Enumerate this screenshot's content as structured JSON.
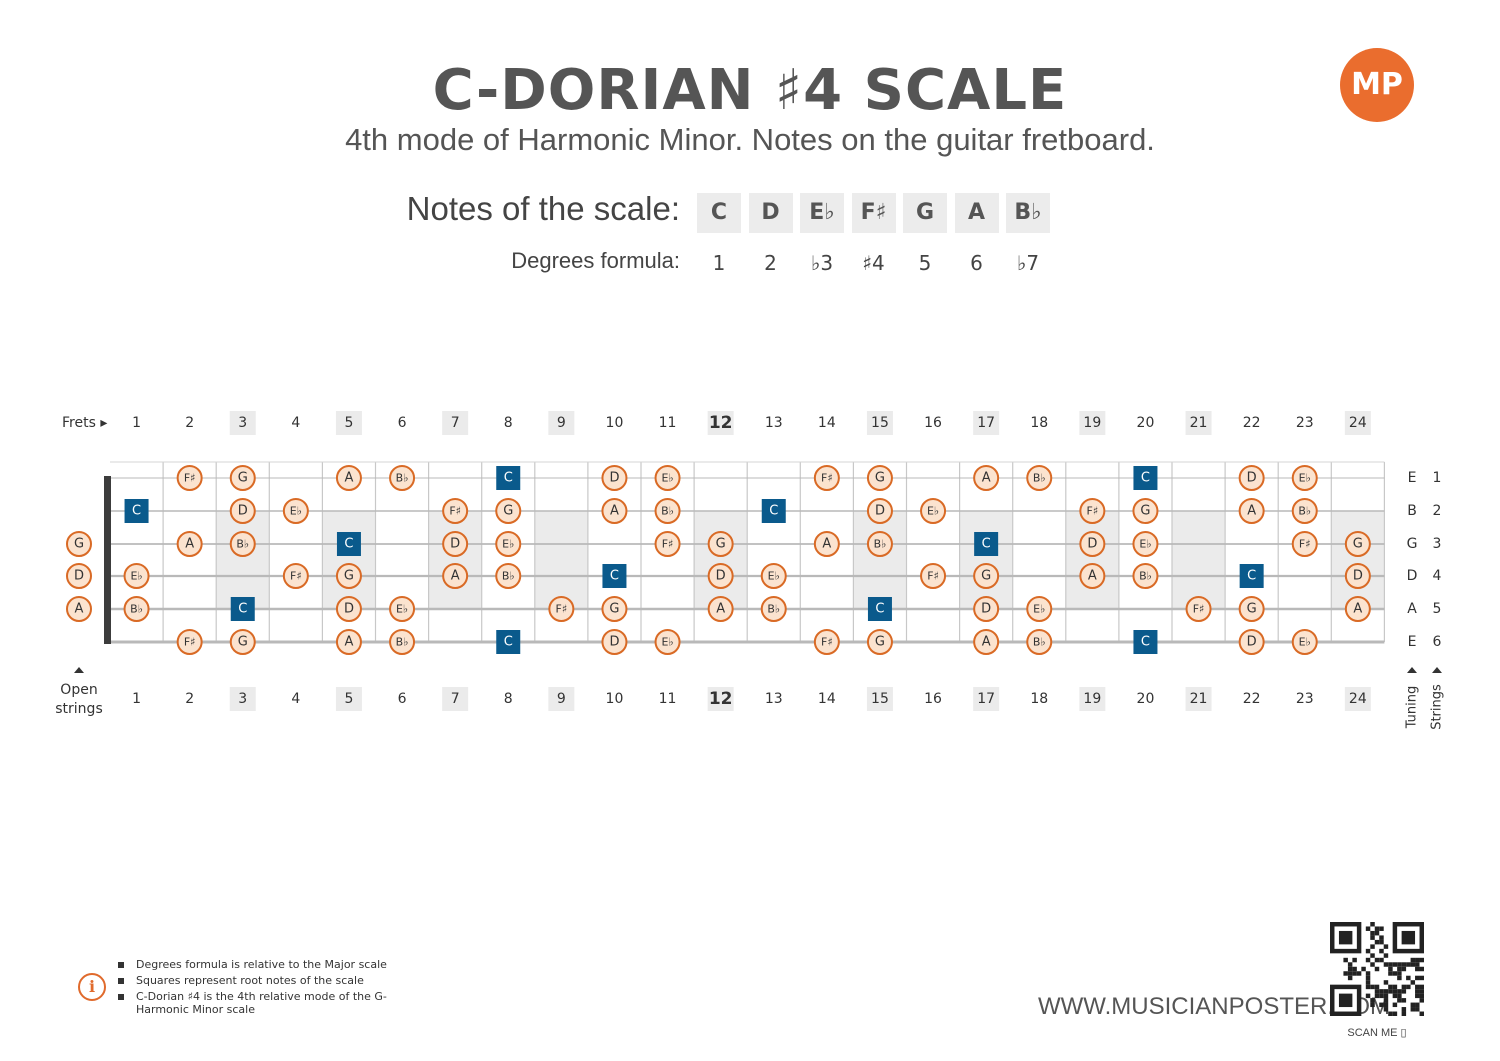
{
  "header": {
    "title": "C-DORIAN ♯4 SCALE",
    "subtitle": "4th mode of Harmonic Minor. Notes on the guitar fretboard.",
    "logo": "MP"
  },
  "scale": {
    "notes_label": "Notes of the scale:",
    "degrees_label": "Degrees formula:",
    "notes": [
      "C",
      "D",
      "E♭",
      "F♯",
      "G",
      "A",
      "B♭"
    ],
    "degrees": [
      "1",
      "2",
      "♭3",
      "♯4",
      "5",
      "6",
      "♭7"
    ]
  },
  "fretboard": {
    "frets_label": "Frets ▸",
    "open_label_1": "Open",
    "open_label_2": "strings",
    "tuning_label": "Tuning",
    "strings_label": "Strings",
    "fret_numbers": [
      "1",
      "2",
      "3",
      "4",
      "5",
      "6",
      "7",
      "8",
      "9",
      "10",
      "11",
      "12",
      "13",
      "14",
      "15",
      "16",
      "17",
      "18",
      "19",
      "20",
      "21",
      "22",
      "23",
      "24"
    ],
    "marked_frets": [
      3,
      5,
      7,
      9,
      12,
      15,
      17,
      19,
      21,
      24
    ],
    "bold_fret": 12,
    "strings": [
      {
        "tuning": "E",
        "number": "1",
        "open": null,
        "notes": [
          [
            2,
            "F♯"
          ],
          [
            3,
            "G"
          ],
          [
            5,
            "A"
          ],
          [
            6,
            "B♭"
          ],
          [
            8,
            "C"
          ],
          [
            10,
            "D"
          ],
          [
            11,
            "E♭"
          ],
          [
            14,
            "F♯"
          ],
          [
            15,
            "G"
          ],
          [
            17,
            "A"
          ],
          [
            18,
            "B♭"
          ],
          [
            20,
            "C"
          ],
          [
            22,
            "D"
          ],
          [
            23,
            "E♭"
          ]
        ]
      },
      {
        "tuning": "B",
        "number": "2",
        "open": null,
        "notes": [
          [
            1,
            "C"
          ],
          [
            3,
            "D"
          ],
          [
            4,
            "E♭"
          ],
          [
            7,
            "F♯"
          ],
          [
            8,
            "G"
          ],
          [
            10,
            "A"
          ],
          [
            11,
            "B♭"
          ],
          [
            13,
            "C"
          ],
          [
            15,
            "D"
          ],
          [
            16,
            "E♭"
          ],
          [
            19,
            "F♯"
          ],
          [
            20,
            "G"
          ],
          [
            22,
            "A"
          ],
          [
            23,
            "B♭"
          ]
        ]
      },
      {
        "tuning": "G",
        "number": "3",
        "open": "G",
        "notes": [
          [
            2,
            "A"
          ],
          [
            3,
            "B♭"
          ],
          [
            5,
            "C"
          ],
          [
            7,
            "D"
          ],
          [
            8,
            "E♭"
          ],
          [
            11,
            "F♯"
          ],
          [
            12,
            "G"
          ],
          [
            14,
            "A"
          ],
          [
            15,
            "B♭"
          ],
          [
            17,
            "C"
          ],
          [
            19,
            "D"
          ],
          [
            20,
            "E♭"
          ],
          [
            23,
            "F♯"
          ],
          [
            24,
            "G"
          ]
        ]
      },
      {
        "tuning": "D",
        "number": "4",
        "open": "D",
        "notes": [
          [
            1,
            "E♭"
          ],
          [
            4,
            "F♯"
          ],
          [
            5,
            "G"
          ],
          [
            7,
            "A"
          ],
          [
            8,
            "B♭"
          ],
          [
            10,
            "C"
          ],
          [
            12,
            "D"
          ],
          [
            13,
            "E♭"
          ],
          [
            16,
            "F♯"
          ],
          [
            17,
            "G"
          ],
          [
            19,
            "A"
          ],
          [
            20,
            "B♭"
          ],
          [
            22,
            "C"
          ],
          [
            24,
            "D"
          ]
        ]
      },
      {
        "tuning": "A",
        "number": "5",
        "open": "A",
        "notes": [
          [
            1,
            "B♭"
          ],
          [
            3,
            "C"
          ],
          [
            5,
            "D"
          ],
          [
            6,
            "E♭"
          ],
          [
            9,
            "F♯"
          ],
          [
            10,
            "G"
          ],
          [
            12,
            "A"
          ],
          [
            13,
            "B♭"
          ],
          [
            15,
            "C"
          ],
          [
            17,
            "D"
          ],
          [
            18,
            "E♭"
          ],
          [
            21,
            "F♯"
          ],
          [
            22,
            "G"
          ],
          [
            24,
            "A"
          ]
        ]
      },
      {
        "tuning": "E",
        "number": "6",
        "open": null,
        "notes": [
          [
            2,
            "F♯"
          ],
          [
            3,
            "G"
          ],
          [
            5,
            "A"
          ],
          [
            6,
            "B♭"
          ],
          [
            8,
            "C"
          ],
          [
            10,
            "D"
          ],
          [
            11,
            "E♭"
          ],
          [
            14,
            "F♯"
          ],
          [
            15,
            "G"
          ],
          [
            17,
            "A"
          ],
          [
            18,
            "B♭"
          ],
          [
            20,
            "C"
          ],
          [
            22,
            "D"
          ],
          [
            23,
            "E♭"
          ]
        ]
      }
    ],
    "root_note": "C"
  },
  "info": {
    "lines": [
      "Degrees formula is relative to the Major scale",
      "Squares represent root notes of the scale",
      "C-Dorian ♯4 is the 4th relative mode of the G-Harmonic Minor scale"
    ]
  },
  "footer": {
    "website": "WWW.MUSICIANPOSTER.COM",
    "scan_me": "SCAN ME"
  },
  "colors": {
    "note_fill": "#fbe3cf",
    "note_stroke": "#d96a25",
    "root_fill": "#0a5a8c",
    "inlay": "#ebebeb",
    "accent": "#ea6d2e"
  }
}
